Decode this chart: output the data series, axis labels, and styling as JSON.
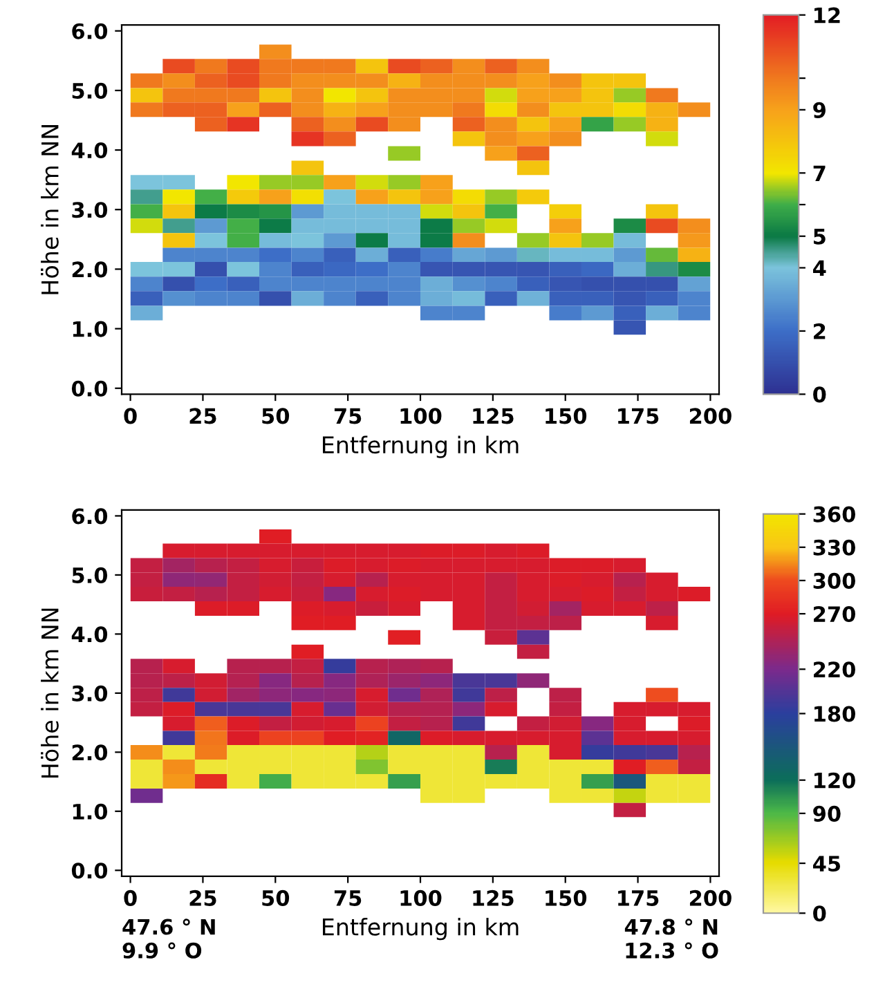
{
  "chart_data": [
    {
      "type": "heatmap",
      "xlabel": "Entfernung in km",
      "ylabel": "Höhe in km NN",
      "x": [
        5.6,
        16.7,
        27.8,
        38.9,
        50.0,
        61.1,
        72.2,
        83.3,
        94.4,
        105.6,
        116.7,
        127.8,
        138.9,
        150.0,
        161.1,
        172.2,
        183.3,
        194.4
      ],
      "y": [
        5.65,
        5.41,
        5.16,
        4.92,
        4.68,
        4.43,
        4.19,
        3.94,
        3.7,
        3.46,
        3.21,
        2.97,
        2.73,
        2.48,
        2.24,
        2.0,
        1.75,
        1.51,
        1.26,
        1.02
      ],
      "cells": [
        [
          null,
          null,
          null,
          null,
          9.5,
          null,
          null,
          null,
          null,
          null,
          null,
          null,
          null,
          null,
          null,
          null,
          null,
          null
        ],
        [
          null,
          11,
          10,
          11,
          10,
          10,
          10,
          8,
          11,
          10.5,
          9.5,
          10.5,
          9.5,
          null,
          null,
          null,
          null,
          null
        ],
        [
          10,
          9.5,
          10.5,
          11,
          10,
          9.5,
          9.5,
          9.5,
          8.5,
          9.5,
          9.5,
          9.5,
          9,
          9.5,
          8,
          8,
          null,
          null
        ],
        [
          8,
          10,
          10,
          10,
          8,
          9.5,
          7,
          8,
          9.5,
          9.5,
          9.5,
          6.8,
          9,
          9,
          8,
          6.5,
          10,
          null
        ],
        [
          10,
          10.5,
          10.5,
          9,
          10.5,
          9.5,
          8.5,
          9,
          9.5,
          9.5,
          10,
          7.3,
          9.5,
          8,
          8,
          7.3,
          8.5,
          9.5
        ],
        [
          null,
          null,
          10.5,
          11.5,
          null,
          10.5,
          9.5,
          11,
          9.5,
          null,
          10.5,
          9.5,
          8,
          9,
          5.8,
          6.5,
          8.5,
          null
        ],
        [
          null,
          null,
          null,
          null,
          null,
          11.5,
          10.5,
          null,
          null,
          null,
          8,
          9.5,
          9,
          9.5,
          null,
          null,
          6.8,
          null
        ],
        [
          null,
          null,
          null,
          null,
          null,
          null,
          null,
          null,
          6.5,
          null,
          null,
          9,
          10.5,
          null,
          null,
          null,
          null,
          null
        ],
        [
          null,
          null,
          null,
          null,
          null,
          8,
          null,
          null,
          null,
          null,
          null,
          null,
          8,
          null,
          null,
          null,
          null,
          null
        ],
        [
          4,
          4,
          null,
          7,
          6.5,
          6.5,
          9,
          6.8,
          6.5,
          9,
          null,
          null,
          null,
          null,
          null,
          null,
          null,
          null
        ],
        [
          4.5,
          7,
          6,
          7.8,
          9,
          7.2,
          4,
          9,
          8,
          9,
          7.3,
          6.5,
          7.8,
          null,
          null,
          null,
          null,
          null
        ],
        [
          6,
          8,
          5,
          5.3,
          5.5,
          3,
          3.8,
          3.8,
          3.8,
          6.8,
          8,
          6,
          null,
          7.7,
          null,
          null,
          8,
          null
        ],
        [
          6.8,
          4.5,
          3,
          6,
          5,
          3.8,
          3.8,
          3.8,
          3.8,
          5,
          6.5,
          6.8,
          null,
          9,
          null,
          5.3,
          11,
          9.5
        ],
        [
          null,
          8,
          4,
          6,
          3.8,
          4,
          3,
          5,
          3.8,
          5,
          9.5,
          null,
          6.5,
          8,
          6.5,
          3.8,
          null,
          9.2
        ],
        [
          null,
          2.5,
          2.5,
          2.5,
          2,
          2.5,
          1.5,
          3.5,
          1.5,
          2.3,
          3.3,
          3,
          4.2,
          3.8,
          3.8,
          3,
          6.2,
          8.5
        ],
        [
          4,
          4,
          1,
          4,
          2.5,
          1.5,
          1.8,
          2,
          2.5,
          1.2,
          1.2,
          1.2,
          1.2,
          1.5,
          1.8,
          3.5,
          4.6,
          5.3
        ],
        [
          2.5,
          1,
          2,
          1.5,
          2.5,
          2.5,
          2.5,
          2.5,
          2.5,
          3.5,
          2.8,
          2.5,
          1.5,
          1.2,
          1,
          1,
          1,
          3.2
        ],
        [
          1.5,
          2.8,
          2.5,
          2.5,
          1,
          3.5,
          2.5,
          1.5,
          2.5,
          3.5,
          3.8,
          1.5,
          3.6,
          1.5,
          1.5,
          1.2,
          1.5,
          2.5
        ],
        [
          3.5,
          null,
          null,
          null,
          null,
          null,
          null,
          null,
          null,
          2.5,
          2.5,
          null,
          null,
          2.3,
          3,
          1.5,
          3.5,
          2.5
        ],
        [
          null,
          null,
          null,
          null,
          null,
          null,
          null,
          null,
          null,
          null,
          null,
          null,
          null,
          null,
          null,
          1.2,
          null,
          null
        ]
      ],
      "clim": [
        0,
        12
      ],
      "cticks": [
        0,
        2,
        4,
        5,
        {
          "value": 6,
          "label": null
        },
        7,
        9,
        {
          "value": 10,
          "label": null
        },
        12
      ],
      "colors": [
        "#2e3192",
        "#3d6fc8",
        "#7cc4dc",
        "#0b7a45",
        "#3fae49",
        "#f2e600",
        "#f7a21b",
        "#f07a1e",
        "#e31e24"
      ],
      "xlim": [
        -3,
        203
      ],
      "ylim": [
        -0.1,
        6.1
      ],
      "xticks": [
        0,
        25,
        50,
        75,
        100,
        125,
        150,
        175,
        200
      ],
      "yticks": [
        {
          "value": 0,
          "label": "0.0"
        },
        {
          "value": 1,
          "label": "1.0"
        },
        {
          "value": 2,
          "label": "2.0"
        },
        {
          "value": 3,
          "label": "3.0"
        },
        {
          "value": 4,
          "label": "4.0"
        },
        {
          "value": 5,
          "label": "5.0"
        },
        {
          "value": 6,
          "label": "6.0"
        }
      ]
    },
    {
      "type": "heatmap",
      "xlabel": "Entfernung in km",
      "ylabel": "Höhe in km NN",
      "x": [
        5.6,
        16.7,
        27.8,
        38.9,
        50.0,
        61.1,
        72.2,
        83.3,
        94.4,
        105.6,
        116.7,
        127.8,
        138.9,
        150.0,
        161.1,
        172.2,
        183.3,
        194.4
      ],
      "y": [
        5.65,
        5.41,
        5.16,
        4.92,
        4.68,
        4.43,
        4.19,
        3.94,
        3.7,
        3.46,
        3.21,
        2.97,
        2.73,
        2.48,
        2.24,
        2.0,
        1.75,
        1.51,
        1.26,
        1.02
      ],
      "cells": [
        [
          null,
          null,
          null,
          null,
          270,
          null,
          null,
          null,
          null,
          null,
          null,
          null,
          null,
          null,
          null,
          null,
          null,
          null
        ],
        [
          null,
          265,
          265,
          265,
          265,
          265,
          265,
          265,
          265,
          268,
          268,
          265,
          268,
          null,
          null,
          null,
          null,
          null
        ],
        [
          255,
          240,
          250,
          255,
          265,
          258,
          268,
          265,
          268,
          265,
          265,
          265,
          265,
          268,
          268,
          265,
          null,
          null
        ],
        [
          255,
          230,
          232,
          255,
          262,
          255,
          265,
          250,
          265,
          265,
          265,
          255,
          265,
          268,
          265,
          250,
          265,
          null
        ],
        [
          258,
          255,
          250,
          255,
          265,
          258,
          225,
          265,
          268,
          265,
          265,
          255,
          265,
          265,
          268,
          255,
          265,
          268
        ],
        [
          null,
          null,
          268,
          268,
          null,
          268,
          265,
          258,
          265,
          null,
          265,
          255,
          262,
          240,
          265,
          265,
          252,
          null
        ],
        [
          null,
          null,
          null,
          null,
          null,
          270,
          270,
          null,
          null,
          null,
          265,
          255,
          255,
          252,
          null,
          null,
          265,
          null
        ],
        [
          null,
          null,
          null,
          null,
          null,
          null,
          null,
          null,
          272,
          null,
          null,
          258,
          205,
          null,
          null,
          null,
          null,
          null
        ],
        [
          null,
          null,
          null,
          null,
          null,
          270,
          null,
          null,
          null,
          null,
          null,
          null,
          255,
          null,
          null,
          null,
          null,
          null
        ],
        [
          250,
          265,
          null,
          250,
          250,
          255,
          185,
          250,
          245,
          250,
          null,
          null,
          null,
          null,
          null,
          null,
          null,
          null
        ],
        [
          250,
          252,
          262,
          248,
          225,
          250,
          225,
          245,
          235,
          228,
          195,
          195,
          230,
          null,
          null,
          null,
          null,
          null
        ],
        [
          252,
          190,
          262,
          238,
          228,
          225,
          228,
          265,
          215,
          245,
          190,
          252,
          null,
          252,
          null,
          null,
          300,
          null
        ],
        [
          255,
          268,
          195,
          195,
          195,
          265,
          210,
          262,
          250,
          248,
          228,
          265,
          null,
          255,
          null,
          265,
          265,
          265
        ],
        [
          null,
          265,
          305,
          268,
          255,
          262,
          265,
          295,
          255,
          250,
          190,
          null,
          255,
          262,
          225,
          265,
          null,
          268
        ],
        [
          null,
          190,
          310,
          268,
          295,
          295,
          270,
          275,
          130,
          268,
          265,
          265,
          265,
          265,
          205,
          265,
          265,
          265
        ],
        [
          315,
          30,
          312,
          30,
          30,
          30,
          30,
          60,
          30,
          30,
          30,
          250,
          30,
          265,
          185,
          190,
          195,
          250
        ],
        [
          30,
          315,
          30,
          30,
          30,
          30,
          30,
          75,
          30,
          30,
          30,
          115,
          30,
          30,
          30,
          270,
          305,
          255
        ],
        [
          30,
          318,
          280,
          30,
          95,
          30,
          30,
          30,
          100,
          30,
          30,
          30,
          30,
          30,
          100,
          150,
          30,
          30
        ],
        [
          215,
          null,
          null,
          null,
          null,
          null,
          null,
          null,
          null,
          30,
          30,
          null,
          null,
          30,
          30,
          55,
          30,
          30
        ],
        [
          null,
          null,
          null,
          null,
          null,
          null,
          null,
          null,
          null,
          null,
          null,
          null,
          null,
          null,
          null,
          255,
          null,
          null
        ]
      ],
      "clim": [
        0,
        360
      ],
      "cticks": [
        0,
        45,
        90,
        120,
        180,
        220,
        270,
        300,
        330,
        360
      ],
      "colors": [
        "#fff8a0",
        "#e6dc00",
        "#4cb848",
        "#0c6e5a",
        "#2b3f9e",
        "#7b2a8c",
        "#e01b24",
        "#ee4a1f",
        "#f9c516",
        "#f2e600"
      ],
      "xlim": [
        -3,
        203
      ],
      "ylim": [
        -0.1,
        6.1
      ],
      "xticks": [
        0,
        25,
        50,
        75,
        100,
        125,
        150,
        175,
        200
      ],
      "yticks": [
        {
          "value": 0,
          "label": "0.0"
        },
        {
          "value": 1,
          "label": "1.0"
        },
        {
          "value": 2,
          "label": "2.0"
        },
        {
          "value": 3,
          "label": "3.0"
        },
        {
          "value": 4,
          "label": "4.0"
        },
        {
          "value": 5,
          "label": "5.0"
        },
        {
          "value": 6,
          "label": "6.0"
        }
      ],
      "annotations": [
        "47.6 ° N\n9.9 ° O",
        "47.8 ° N\n12.3 ° O"
      ]
    }
  ]
}
